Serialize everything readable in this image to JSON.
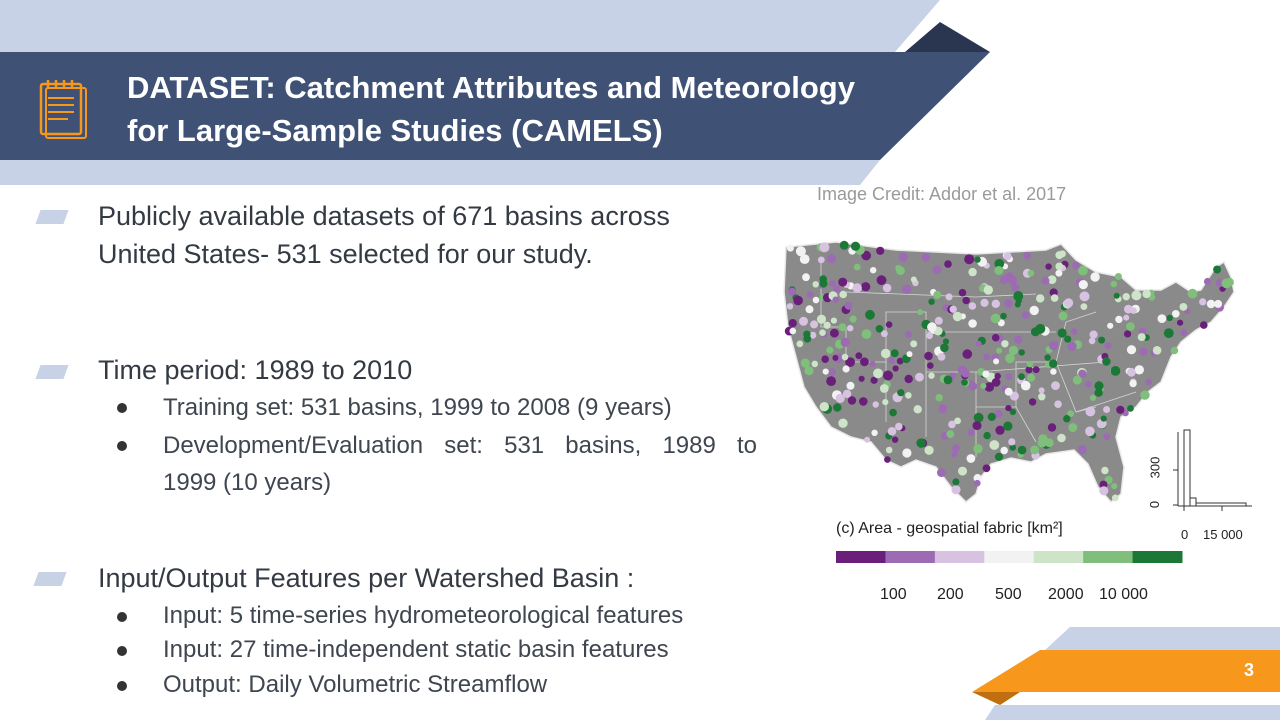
{
  "header": {
    "title_line1": "DATASET: Catchment Attributes and Meteorology",
    "title_line2": "for Large-Sample Studies (CAMELS)"
  },
  "bullets": {
    "b1_line1": "Publicly available datasets of 671 basins across",
    "b1_line2": "United States- 531 selected for our study.",
    "b2": "Time period: 1989 to 2010",
    "b2_sub1": "Training set: 531 basins, 1999 to 2008 (9 years)",
    "b2_sub2_line1": "Development/Evaluation set: 531 basins, 1989 to",
    "b2_sub2_line2": "1999 (10 years)",
    "b3": "Input/Output Features per Watershed Basin :",
    "b3_sub1": "Input: 5 time-series hydrometeorological features",
    "b3_sub2": "Input: 27 time-independent static basin features",
    "b3_sub3": "Output: Daily Volumetric Streamflow"
  },
  "figure": {
    "credit": "Image Credit: Addor et al. 2017",
    "legend_title": "(c) Area - geospatial fabric [km²]",
    "legend_ticks": [
      "100",
      "200",
      "500",
      "2000",
      "10 000"
    ],
    "legend_colors": [
      "#6a1f7a",
      "#9c6bb3",
      "#d8c2e2",
      "#f2f2f2",
      "#cde4c8",
      "#7fbf7b",
      "#1b7837"
    ],
    "hist_y_ticks": [
      "0",
      "300"
    ],
    "hist_x_ticks": [
      "0",
      "15 000"
    ]
  },
  "footer": {
    "page_number": "3"
  },
  "colors": {
    "header_band": "#3f5175",
    "header_dark": "#2a3550",
    "light_band": "#c8d2e6",
    "accent_orange": "#f7981d"
  },
  "icons": {
    "header_icon": "notepad-icon"
  }
}
